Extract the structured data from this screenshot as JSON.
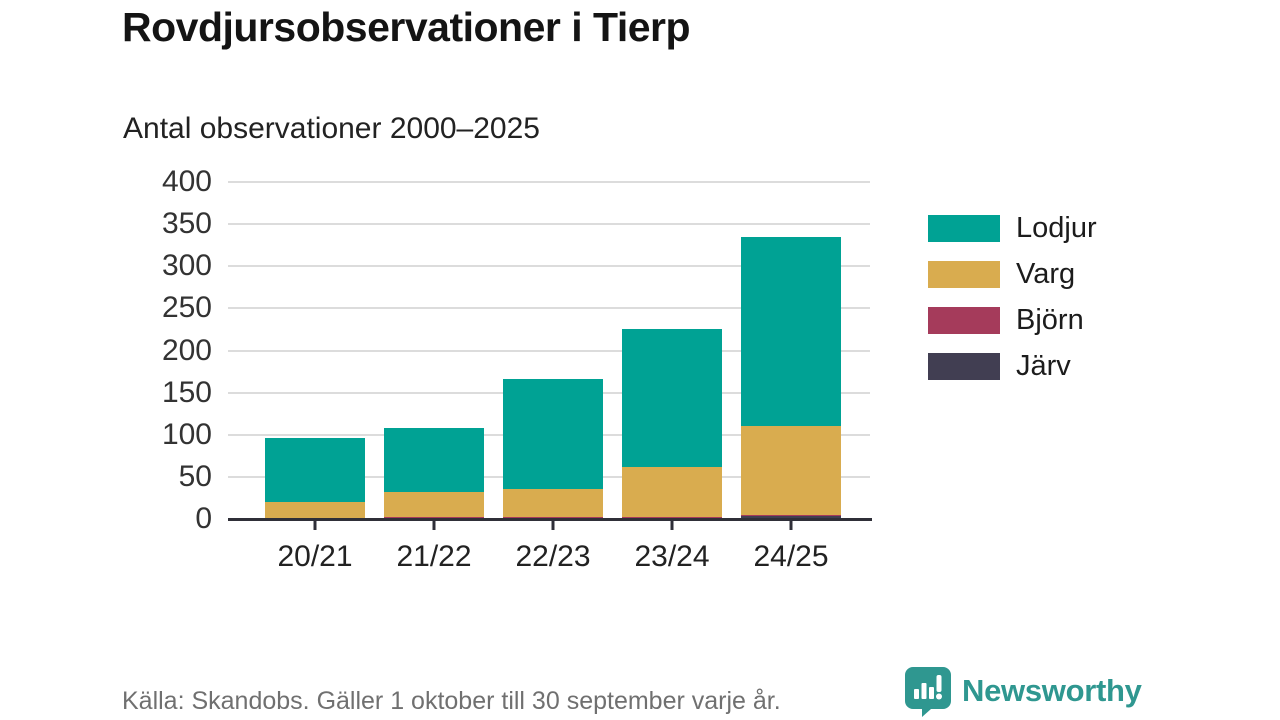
{
  "title": "Rovdjursobservationer i Tierp",
  "subtitle": "Antal observationer 2000–2025",
  "footer": {
    "source": "Källa: Skandobs. Gäller 1 oktober till 30 september varje år.",
    "brand": "Newsworthy"
  },
  "colors": {
    "lodjur": "#00a294",
    "varg": "#d9ac4f",
    "bjorn": "#a53b5b",
    "jarv": "#413e52",
    "brand_teal": "#2f9790",
    "grid": "#dcdcdc",
    "axis": "#2f2f38"
  },
  "chart_data": {
    "type": "bar",
    "stacked": true,
    "title": "Rovdjursobservationer i Tierp",
    "subtitle": "Antal observationer 2000–2025",
    "categories": [
      "20/21",
      "21/22",
      "22/23",
      "23/24",
      "24/25"
    ],
    "series": [
      {
        "name": "Järv",
        "color": "#413e52",
        "values": [
          0,
          0,
          0,
          0,
          3
        ]
      },
      {
        "name": "Björn",
        "color": "#a53b5b",
        "values": [
          0,
          2,
          2,
          2,
          2
        ]
      },
      {
        "name": "Varg",
        "color": "#d9ac4f",
        "values": [
          20,
          30,
          34,
          60,
          105
        ]
      },
      {
        "name": "Lodjur",
        "color": "#00a294",
        "values": [
          76,
          76,
          130,
          163,
          225
        ]
      }
    ],
    "totals": [
      96,
      108,
      166,
      225,
      335
    ],
    "y_ticks": [
      0,
      50,
      100,
      150,
      200,
      250,
      300,
      350,
      400
    ],
    "ylim": [
      0,
      400
    ],
    "grid": true,
    "legend_order": [
      "Lodjur",
      "Varg",
      "Björn",
      "Järv"
    ],
    "legend_position": "right"
  }
}
